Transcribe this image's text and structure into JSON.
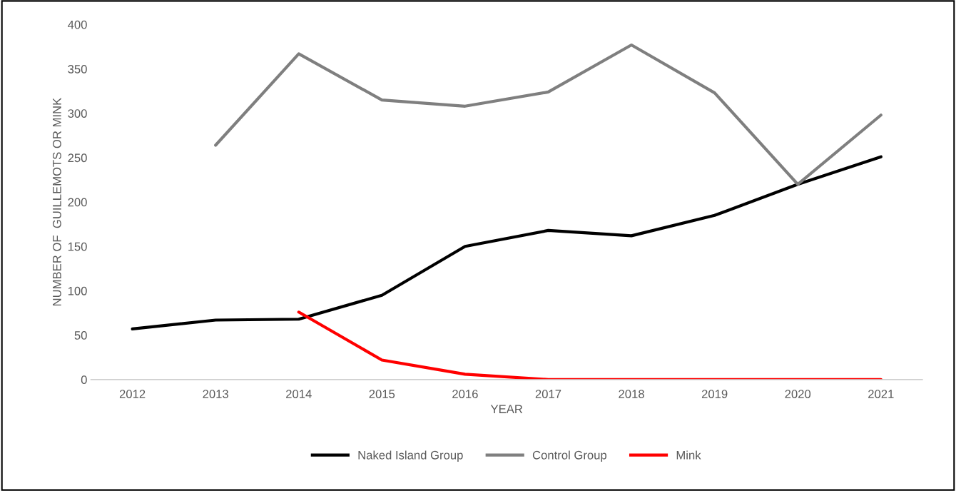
{
  "chart_data": {
    "type": "line",
    "xlabel": "YEAR",
    "ylabel": "NUMBER OF  GUILLEMOTS OR MINK",
    "categories": [
      "2012",
      "2013",
      "2014",
      "2015",
      "2016",
      "2017",
      "2018",
      "2019",
      "2020",
      "2021"
    ],
    "series": [
      {
        "name": "Naked Island Group",
        "color": "#000000",
        "values": [
          57,
          67,
          68,
          95,
          150,
          168,
          162,
          185,
          220,
          251
        ]
      },
      {
        "name": "Control Group",
        "color": "#7f7f7f",
        "values": [
          null,
          264,
          367,
          315,
          308,
          324,
          377,
          323,
          220,
          298
        ]
      },
      {
        "name": "Mink",
        "color": "#ff0000",
        "values": [
          null,
          null,
          76,
          22,
          6,
          0,
          0,
          0,
          0,
          0
        ]
      }
    ],
    "ylim": [
      0,
      400
    ],
    "yticks": [
      0,
      50,
      100,
      150,
      200,
      250,
      300,
      350,
      400
    ],
    "grid": false,
    "legend": "bottom",
    "marker": "none",
    "line_style": "solid"
  }
}
